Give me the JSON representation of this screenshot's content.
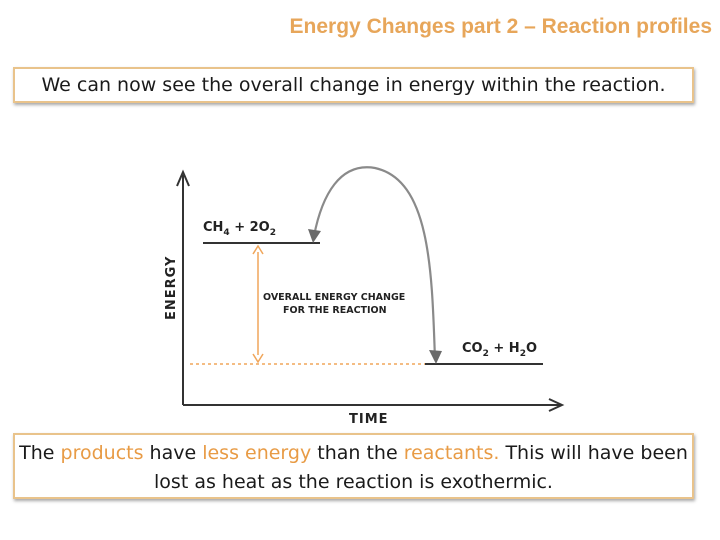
{
  "slide": {
    "title": "Energy Changes part 2 – Reaction profiles",
    "top_text": "We can now see the overall change in energy within the reaction.",
    "bottom": {
      "part1": "The ",
      "products": "products",
      "part2": " have ",
      "less_energy": "less energy",
      "part3": " than the ",
      "reactants": "reactants.",
      "part4": " This will have been lost as heat as the reaction is exothermic."
    },
    "highlight_color": "#E89B45",
    "border_color": "#E9C38B"
  },
  "diagram": {
    "y_axis_label": "ENERGY",
    "x_axis_label": "TIME",
    "reactants": {
      "main": "CH",
      "sub1": "4",
      "plus": " + 2O",
      "sub2": "2"
    },
    "products": {
      "main": "CO",
      "sub1": "2",
      "plus": " + H",
      "sub2": "2",
      "tail": "O"
    },
    "annotation_line1": "OVERALL ENERGY CHANGE",
    "annotation_line2": "FOR THE REACTION",
    "arrow_color": "#F0A65A",
    "curve_color": "#8a8a8a"
  }
}
